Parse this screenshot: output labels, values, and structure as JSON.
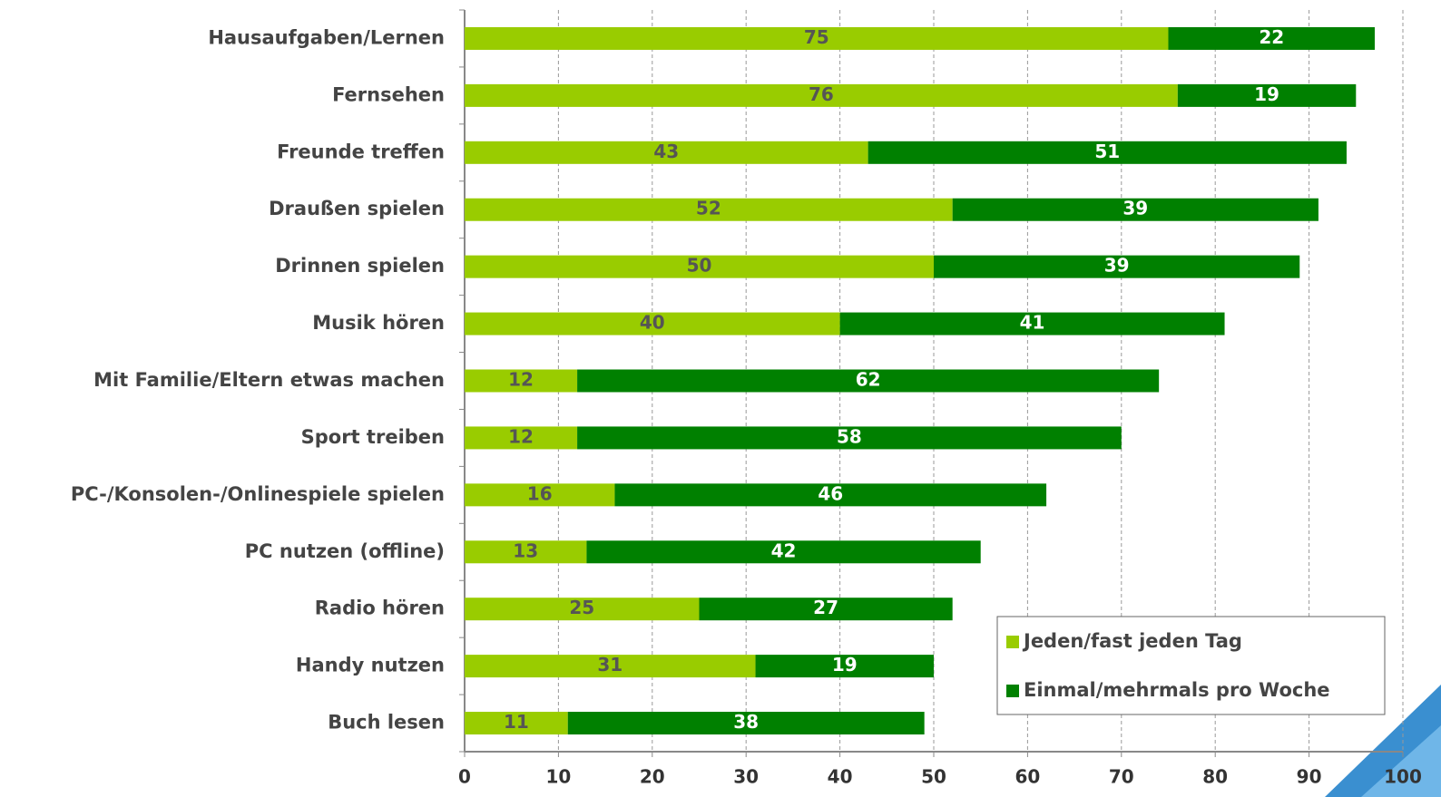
{
  "chart_data": {
    "type": "bar",
    "orientation": "horizontal",
    "stacked": true,
    "categories": [
      "Hausaufgaben/Lernen",
      "Fernsehen",
      "Freunde treffen",
      "Draußen spielen",
      "Drinnen spielen",
      "Musik hören",
      "Mit Familie/Eltern etwas machen",
      "Sport treiben",
      "PC-/Konsolen-/Onlinespiele spielen",
      "PC nutzen (offline)",
      "Radio hören",
      "Handy nutzen",
      "Buch lesen"
    ],
    "series": [
      {
        "name": "Jeden/fast jeden Tag",
        "color": "#99cc00",
        "values": [
          75,
          76,
          43,
          52,
          50,
          40,
          12,
          12,
          16,
          13,
          25,
          31,
          11
        ]
      },
      {
        "name": "Einmal/mehrmals pro Woche",
        "color": "#008000",
        "values": [
          22,
          19,
          51,
          39,
          39,
          41,
          62,
          58,
          46,
          42,
          27,
          19,
          38
        ]
      }
    ],
    "xlim": [
      0,
      100
    ],
    "xticks": [
      0,
      10,
      20,
      30,
      40,
      50,
      60,
      70,
      80,
      90,
      100
    ],
    "grid": true,
    "legend": "lower right"
  }
}
